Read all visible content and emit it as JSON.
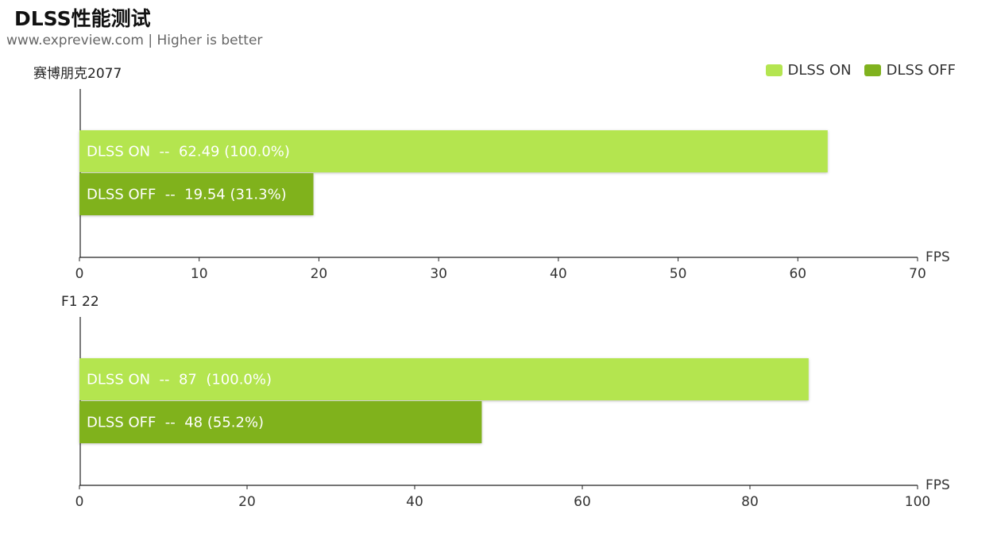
{
  "title": "DLSS性能测试",
  "subtitle": "www.expreview.com | Higher is better",
  "legend": [
    {
      "label": "DLSS ON",
      "color": "#b4e550"
    },
    {
      "label": "DLSS OFF",
      "color": "#80b21e"
    }
  ],
  "chart_data": [
    {
      "type": "bar",
      "title": "赛博朋克2077",
      "xlabel": "FPS",
      "xlim": [
        0,
        70
      ],
      "ticks": [
        0,
        10,
        20,
        30,
        40,
        50,
        60,
        70
      ],
      "series": [
        {
          "name": "DLSS ON",
          "value": 62.49,
          "label": "DLSS ON  --  62.49 (100.0%)",
          "color": "#b4e550"
        },
        {
          "name": "DLSS OFF",
          "value": 19.54,
          "label": "DLSS OFF  --  19.54 (31.3%)",
          "color": "#80b21e"
        }
      ]
    },
    {
      "type": "bar",
      "title": "F1 22",
      "xlabel": "FPS",
      "xlim": [
        0,
        100
      ],
      "ticks": [
        0,
        20,
        40,
        60,
        80,
        100
      ],
      "series": [
        {
          "name": "DLSS ON",
          "value": 87,
          "label": "DLSS ON  --  87  (100.0%)",
          "color": "#b4e550"
        },
        {
          "name": "DLSS OFF",
          "value": 48,
          "label": "DLSS OFF  --  48 (55.2%)",
          "color": "#80b21e"
        }
      ]
    }
  ]
}
